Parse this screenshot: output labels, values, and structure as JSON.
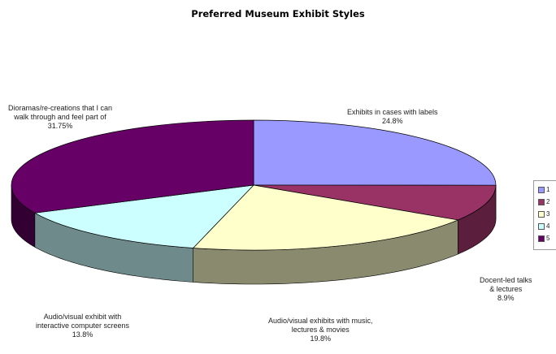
{
  "chart_data": {
    "type": "pie",
    "title": "Preferred Museum Exhibit Styles",
    "slices": [
      {
        "legend_id": "1",
        "label_lines": [
          "Exhibits in cases with labels",
          "24.8%"
        ],
        "value": 24.8,
        "color": "#9999ff",
        "side_color": "#5a5ab0"
      },
      {
        "legend_id": "2",
        "label_lines": [
          "Docent-led talks",
          "& lectures",
          "8.9%"
        ],
        "value": 8.9,
        "color": "#993366",
        "side_color": "#5c1e3d"
      },
      {
        "legend_id": "3",
        "label_lines": [
          "Audio/visual exhibits with music,",
          "lectures & movies",
          "19.8%"
        ],
        "value": 19.8,
        "color": "#ffffcc",
        "side_color": "#8a8a6e"
      },
      {
        "legend_id": "4",
        "label_lines": [
          "Audio/visual exhibit with",
          "interactive computer screens",
          "13.8%"
        ],
        "value": 13.8,
        "color": "#ccffff",
        "side_color": "#6e8a8a"
      },
      {
        "legend_id": "5",
        "label_lines": [
          "Dioramas/re-creations that I can",
          "walk through and feel part of",
          "31.75%"
        ],
        "value": 31.75,
        "color": "#660066",
        "side_color": "#330033"
      }
    ],
    "legend_placement": "right",
    "three_d": true
  }
}
